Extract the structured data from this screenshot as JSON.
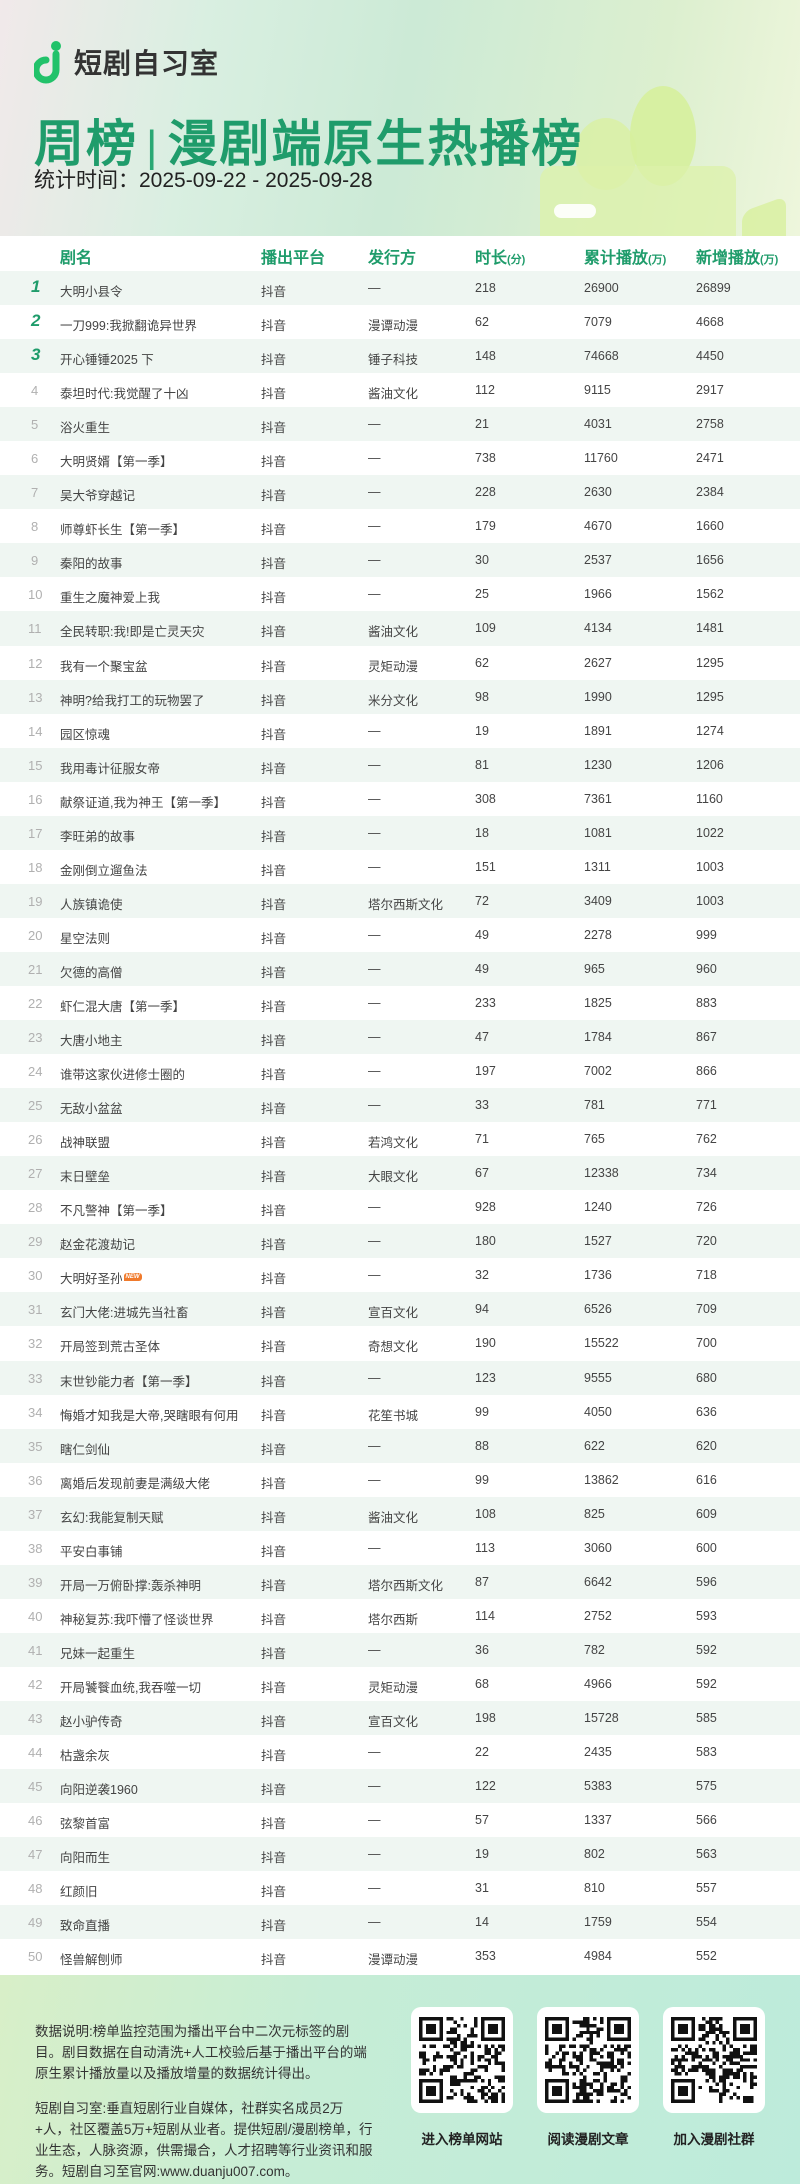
{
  "brand": {
    "name": "短剧自习室",
    "accent": "#1f9c6b"
  },
  "header": {
    "title_left": "周榜",
    "title_separator": "|",
    "title_right": "漫剧端原生热播榜",
    "date_label": "统计时间：",
    "date_range": "2025-09-22 - 2025-09-28"
  },
  "table": {
    "columns": [
      {
        "label": "剧名",
        "unit": ""
      },
      {
        "label": "播出平台",
        "unit": ""
      },
      {
        "label": "发行方",
        "unit": ""
      },
      {
        "label": "时长",
        "unit": "(分)"
      },
      {
        "label": "累计播放",
        "unit": "(万)"
      },
      {
        "label": "新增播放",
        "unit": "(万)"
      }
    ],
    "rows": [
      [
        "1",
        "大明小县令",
        "抖音",
        "—",
        "218",
        "26900",
        "26899"
      ],
      [
        "2",
        "一刀999:我掀翻诡异世界",
        "抖音",
        "漫谭动漫",
        "62",
        "7079",
        "4668"
      ],
      [
        "3",
        "开心锤锤2025 下",
        "抖音",
        "锤子科技",
        "148",
        "74668",
        "4450"
      ],
      [
        "4",
        "泰坦时代:我觉醒了十凶",
        "抖音",
        "酱油文化",
        "112",
        "9115",
        "2917"
      ],
      [
        "5",
        "浴火重生",
        "抖音",
        "—",
        "21",
        "4031",
        "2758"
      ],
      [
        "6",
        "大明贤婿【第一季】",
        "抖音",
        "—",
        "738",
        "11760",
        "2471"
      ],
      [
        "7",
        "吴大爷穿越记",
        "抖音",
        "—",
        "228",
        "2630",
        "2384"
      ],
      [
        "8",
        "师尊虾长生【第一季】",
        "抖音",
        "—",
        "179",
        "4670",
        "1660"
      ],
      [
        "9",
        "秦阳的故事",
        "抖音",
        "—",
        "30",
        "2537",
        "1656"
      ],
      [
        "10",
        "重生之魔神爱上我",
        "抖音",
        "—",
        "25",
        "1966",
        "1562"
      ],
      [
        "11",
        "全民转职:我!即是亡灵天灾",
        "抖音",
        "酱油文化",
        "109",
        "4134",
        "1481"
      ],
      [
        "12",
        "我有一个聚宝盆",
        "抖音",
        "灵矩动漫",
        "62",
        "2627",
        "1295"
      ],
      [
        "13",
        "神明?给我打工的玩物罢了",
        "抖音",
        "米分文化",
        "98",
        "1990",
        "1295"
      ],
      [
        "14",
        "园区惊魂",
        "抖音",
        "—",
        "19",
        "1891",
        "1274"
      ],
      [
        "15",
        "我用毒计征服女帝",
        "抖音",
        "—",
        "81",
        "1230",
        "1206"
      ],
      [
        "16",
        "献祭证道,我为神王【第一季】",
        "抖音",
        "—",
        "308",
        "7361",
        "1160"
      ],
      [
        "17",
        "李旺弟的故事",
        "抖音",
        "—",
        "18",
        "1081",
        "1022"
      ],
      [
        "18",
        "金刚倒立遛鱼法",
        "抖音",
        "—",
        "151",
        "1311",
        "1003"
      ],
      [
        "19",
        "人族镇诡使",
        "抖音",
        "塔尔西斯文化",
        "72",
        "3409",
        "1003"
      ],
      [
        "20",
        "星空法则",
        "抖音",
        "—",
        "49",
        "2278",
        "999"
      ],
      [
        "21",
        "欠德的高僧",
        "抖音",
        "—",
        "49",
        "965",
        "960"
      ],
      [
        "22",
        "虾仁混大唐【第一季】",
        "抖音",
        "—",
        "233",
        "1825",
        "883"
      ],
      [
        "23",
        "大唐小地主",
        "抖音",
        "—",
        "47",
        "1784",
        "867"
      ],
      [
        "24",
        "谁带这家伙进修士圈的",
        "抖音",
        "—",
        "197",
        "7002",
        "866"
      ],
      [
        "25",
        "无敌小盆盆",
        "抖音",
        "—",
        "33",
        "781",
        "771"
      ],
      [
        "26",
        "战神联盟",
        "抖音",
        "若鸿文化",
        "71",
        "765",
        "762"
      ],
      [
        "27",
        "末日壁垒",
        "抖音",
        "大眼文化",
        "67",
        "12338",
        "734"
      ],
      [
        "28",
        "不凡警神【第一季】",
        "抖音",
        "—",
        "928",
        "1240",
        "726"
      ],
      [
        "29",
        "赵金花渡劫记",
        "抖音",
        "—",
        "180",
        "1527",
        "720"
      ],
      [
        "30",
        "大明好圣孙",
        "抖音",
        "—",
        "32",
        "1736",
        "718"
      ],
      [
        "31",
        "玄门大佬:进城先当社畜",
        "抖音",
        "宣百文化",
        "94",
        "6526",
        "709"
      ],
      [
        "32",
        "开局签到荒古圣体",
        "抖音",
        "奇想文化",
        "190",
        "15522",
        "700"
      ],
      [
        "33",
        "末世钞能力者【第一季】",
        "抖音",
        "—",
        "123",
        "9555",
        "680"
      ],
      [
        "34",
        "悔婚才知我是大帝,哭瞎眼有何用",
        "抖音",
        "花笙书城",
        "99",
        "4050",
        "636"
      ],
      [
        "35",
        "瞎仁剑仙",
        "抖音",
        "—",
        "88",
        "622",
        "620"
      ],
      [
        "36",
        "离婚后发现前妻是满级大佬",
        "抖音",
        "—",
        "99",
        "13862",
        "616"
      ],
      [
        "37",
        "玄幻:我能复制天赋",
        "抖音",
        "酱油文化",
        "108",
        "825",
        "609"
      ],
      [
        "38",
        "平安白事铺",
        "抖音",
        "—",
        "113",
        "3060",
        "600"
      ],
      [
        "39",
        "开局一万俯卧撑:轰杀神明",
        "抖音",
        "塔尔西斯文化",
        "87",
        "6642",
        "596"
      ],
      [
        "40",
        "神秘复苏:我吓懵了怪谈世界",
        "抖音",
        "塔尔西斯",
        "114",
        "2752",
        "593"
      ],
      [
        "41",
        "兄妹一起重生",
        "抖音",
        "—",
        "36",
        "782",
        "592"
      ],
      [
        "42",
        "开局饕餮血统,我吞噬一切",
        "抖音",
        "灵矩动漫",
        "68",
        "4966",
        "592"
      ],
      [
        "43",
        "赵小驴传奇",
        "抖音",
        "宣百文化",
        "198",
        "15728",
        "585"
      ],
      [
        "44",
        "枯盏余灰",
        "抖音",
        "—",
        "22",
        "2435",
        "583"
      ],
      [
        "45",
        "向阳逆袭1960",
        "抖音",
        "—",
        "122",
        "5383",
        "575"
      ],
      [
        "46",
        "弦黎首富",
        "抖音",
        "—",
        "57",
        "1337",
        "566"
      ],
      [
        "47",
        "向阳而生",
        "抖音",
        "—",
        "19",
        "802",
        "563"
      ],
      [
        "48",
        "红颜旧",
        "抖音",
        "—",
        "31",
        "810",
        "557"
      ],
      [
        "49",
        "致命直播",
        "抖音",
        "—",
        "14",
        "1759",
        "554"
      ],
      [
        "50",
        "怪兽解刨师",
        "抖音",
        "漫谭动漫",
        "353",
        "4984",
        "552"
      ]
    ],
    "new_badge": {
      "row": 30,
      "label": "NEW",
      "color": "#f07a2c"
    }
  },
  "footer": {
    "note": "数据说明:榜单监控范围为播出平台中二次元标签的剧目。剧目数据在自动清洗+人工校验后基于播出平台的端原生累计播放量以及播放增量的数据统计得出。",
    "about": "短剧自习室:垂直短剧行业自媒体，社群实名成员2万+人，社区覆盖5万+短剧从业者。提供短剧/漫剧榜单，行业生态，人脉资源，供需撮合，人才招聘等行业资讯和服务。短剧自习至官网:www.duanju007.com。",
    "qr_codes": [
      {
        "label": "进入榜单网站",
        "icon": "qr-code-icon"
      },
      {
        "label": "阅读漫剧文章",
        "icon": "qr-code-icon"
      },
      {
        "label": "加入漫剧社群",
        "icon": "qr-code-icon"
      }
    ]
  }
}
